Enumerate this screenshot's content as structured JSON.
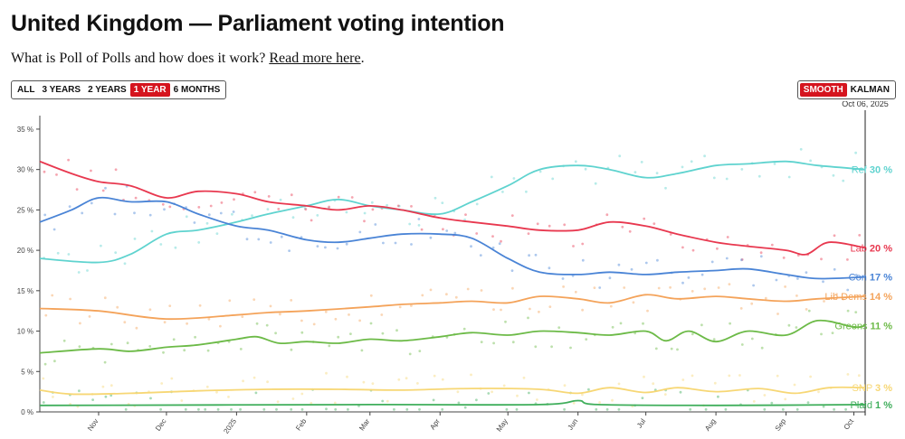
{
  "title": "United Kingdom — Parliament voting intention",
  "subtitle": {
    "prefix": "What is Poll of Polls and how does it work? ",
    "link": "Read more here",
    "suffix": "."
  },
  "range_buttons": [
    "ALL",
    "3 YEARS",
    "2 YEARS",
    "1 YEAR",
    "6 MONTHS"
  ],
  "range_active": "1 YEAR",
  "method_buttons": [
    "SMOOTH",
    "KALMAN"
  ],
  "method_active": "SMOOTH",
  "chart_data": {
    "type": "line",
    "current_date": "Oct 06, 2025",
    "x_range": [
      "2024-10-06",
      "2025-10-06"
    ],
    "ylim": [
      0,
      36
    ],
    "yticks": [
      0,
      5,
      10,
      15,
      20,
      25,
      30,
      35
    ],
    "ytick_suffix": " %",
    "xticks": [
      {
        "label": "Nov",
        "date": "2024-11-01"
      },
      {
        "label": "Dec",
        "date": "2024-12-01"
      },
      {
        "label": "2025",
        "date": "2025-01-01"
      },
      {
        "label": "Feb",
        "date": "2025-02-01"
      },
      {
        "label": "Mar",
        "date": "2025-03-01"
      },
      {
        "label": "Apr",
        "date": "2025-04-01"
      },
      {
        "label": "May",
        "date": "2025-05-01"
      },
      {
        "label": "Jun",
        "date": "2025-06-01"
      },
      {
        "label": "Jul",
        "date": "2025-07-01"
      },
      {
        "label": "Aug",
        "date": "2025-08-01"
      },
      {
        "label": "Sep",
        "date": "2025-09-01"
      },
      {
        "label": "Oct",
        "date": "2025-10-01"
      }
    ],
    "series": [
      {
        "name": "Ref",
        "label": "30 %",
        "color": "#5fd3cf",
        "points": [
          [
            "2024-10-06",
            19
          ],
          [
            "2024-11-01",
            18.5
          ],
          [
            "2024-11-15",
            19.5
          ],
          [
            "2024-12-01",
            22
          ],
          [
            "2024-12-15",
            22.5
          ],
          [
            "2025-01-01",
            23.5
          ],
          [
            "2025-01-15",
            24.5
          ],
          [
            "2025-02-01",
            25.5
          ],
          [
            "2025-02-15",
            26.3
          ],
          [
            "2025-03-01",
            25.5
          ],
          [
            "2025-03-15",
            25
          ],
          [
            "2025-04-01",
            24.5
          ],
          [
            "2025-04-15",
            26
          ],
          [
            "2025-05-01",
            28
          ],
          [
            "2025-05-15",
            30
          ],
          [
            "2025-06-01",
            30.5
          ],
          [
            "2025-06-15",
            30
          ],
          [
            "2025-07-01",
            29
          ],
          [
            "2025-07-15",
            29.5
          ],
          [
            "2025-08-01",
            30.5
          ],
          [
            "2025-08-15",
            30.7
          ],
          [
            "2025-09-01",
            31
          ],
          [
            "2025-09-15",
            30.5
          ],
          [
            "2025-10-06",
            30
          ]
        ]
      },
      {
        "name": "Lab",
        "label": "20 %",
        "color": "#e8384f",
        "points": [
          [
            "2024-10-06",
            31
          ],
          [
            "2024-10-20",
            29.5
          ],
          [
            "2024-11-01",
            28.5
          ],
          [
            "2024-11-15",
            28
          ],
          [
            "2024-12-01",
            26.5
          ],
          [
            "2024-12-15",
            27.3
          ],
          [
            "2025-01-01",
            27
          ],
          [
            "2025-01-15",
            26
          ],
          [
            "2025-02-01",
            25.5
          ],
          [
            "2025-02-15",
            25
          ],
          [
            "2025-03-01",
            25.5
          ],
          [
            "2025-03-15",
            25
          ],
          [
            "2025-04-01",
            24
          ],
          [
            "2025-04-15",
            23.5
          ],
          [
            "2025-05-01",
            23
          ],
          [
            "2025-05-15",
            22.5
          ],
          [
            "2025-06-01",
            22.5
          ],
          [
            "2025-06-15",
            23.5
          ],
          [
            "2025-07-01",
            23
          ],
          [
            "2025-07-15",
            22
          ],
          [
            "2025-08-01",
            21
          ],
          [
            "2025-08-15",
            20.5
          ],
          [
            "2025-09-01",
            20
          ],
          [
            "2025-09-10",
            19.5
          ],
          [
            "2025-09-20",
            21
          ],
          [
            "2025-10-06",
            20.3
          ]
        ]
      },
      {
        "name": "Con",
        "label": "17 %",
        "color": "#4a84d6",
        "points": [
          [
            "2024-10-06",
            23.5
          ],
          [
            "2024-10-20",
            25
          ],
          [
            "2024-11-01",
            26.5
          ],
          [
            "2024-11-15",
            26
          ],
          [
            "2024-12-01",
            26
          ],
          [
            "2024-12-15",
            24.5
          ],
          [
            "2025-01-01",
            23
          ],
          [
            "2025-01-15",
            22.5
          ],
          [
            "2025-02-01",
            21.3
          ],
          [
            "2025-02-15",
            21
          ],
          [
            "2025-03-01",
            21.5
          ],
          [
            "2025-03-15",
            22
          ],
          [
            "2025-04-01",
            22
          ],
          [
            "2025-04-15",
            21.5
          ],
          [
            "2025-05-01",
            19
          ],
          [
            "2025-05-15",
            17.3
          ],
          [
            "2025-06-01",
            17
          ],
          [
            "2025-06-15",
            17.3
          ],
          [
            "2025-07-01",
            17
          ],
          [
            "2025-07-15",
            17.3
          ],
          [
            "2025-08-01",
            17.5
          ],
          [
            "2025-08-15",
            17.7
          ],
          [
            "2025-09-01",
            17
          ],
          [
            "2025-09-15",
            16.5
          ],
          [
            "2025-10-06",
            16.7
          ]
        ]
      },
      {
        "name": "Lib Dems",
        "label": "14 %",
        "color": "#f4a35a",
        "points": [
          [
            "2024-10-06",
            12.8
          ],
          [
            "2024-11-01",
            12.5
          ],
          [
            "2024-12-01",
            11.5
          ],
          [
            "2025-01-01",
            12
          ],
          [
            "2025-01-15",
            12.3
          ],
          [
            "2025-02-01",
            12.5
          ],
          [
            "2025-03-01",
            13
          ],
          [
            "2025-03-15",
            13.3
          ],
          [
            "2025-04-01",
            13.5
          ],
          [
            "2025-04-15",
            13.7
          ],
          [
            "2025-05-01",
            13.5
          ],
          [
            "2025-05-15",
            14.3
          ],
          [
            "2025-06-01",
            14
          ],
          [
            "2025-06-15",
            13.5
          ],
          [
            "2025-07-01",
            14.5
          ],
          [
            "2025-07-15",
            14
          ],
          [
            "2025-08-01",
            14.3
          ],
          [
            "2025-08-15",
            14
          ],
          [
            "2025-09-01",
            13.7
          ],
          [
            "2025-09-15",
            14
          ],
          [
            "2025-10-06",
            14.3
          ]
        ]
      },
      {
        "name": "Greens",
        "label": "11 %",
        "color": "#6cba47",
        "points": [
          [
            "2024-10-06",
            7.3
          ],
          [
            "2024-11-01",
            7.8
          ],
          [
            "2024-11-15",
            7.5
          ],
          [
            "2024-12-01",
            8
          ],
          [
            "2024-12-15",
            8.3
          ],
          [
            "2025-01-01",
            9
          ],
          [
            "2025-01-10",
            9.3
          ],
          [
            "2025-01-20",
            8.5
          ],
          [
            "2025-02-01",
            8.7
          ],
          [
            "2025-02-15",
            8.5
          ],
          [
            "2025-03-01",
            9
          ],
          [
            "2025-03-15",
            8.8
          ],
          [
            "2025-04-01",
            9.3
          ],
          [
            "2025-04-15",
            9.8
          ],
          [
            "2025-05-01",
            9.5
          ],
          [
            "2025-05-15",
            10
          ],
          [
            "2025-06-01",
            9.8
          ],
          [
            "2025-06-15",
            9.5
          ],
          [
            "2025-07-01",
            10
          ],
          [
            "2025-07-10",
            8.8
          ],
          [
            "2025-07-20",
            10
          ],
          [
            "2025-08-01",
            8.7
          ],
          [
            "2025-08-15",
            10
          ],
          [
            "2025-09-01",
            9.5
          ],
          [
            "2025-09-15",
            11.3
          ],
          [
            "2025-10-01",
            10.5
          ],
          [
            "2025-10-06",
            10.7
          ]
        ]
      },
      {
        "name": "SNP",
        "label": "3 %",
        "color": "#f7d775",
        "points": [
          [
            "2024-10-06",
            2.7
          ],
          [
            "2024-10-20",
            2.2
          ],
          [
            "2024-11-15",
            2.3
          ],
          [
            "2024-12-15",
            2.6
          ],
          [
            "2025-01-15",
            2.8
          ],
          [
            "2025-02-15",
            2.8
          ],
          [
            "2025-03-15",
            2.7
          ],
          [
            "2025-04-15",
            2.9
          ],
          [
            "2025-05-15",
            2.8
          ],
          [
            "2025-06-01",
            2.3
          ],
          [
            "2025-06-15",
            3
          ],
          [
            "2025-07-01",
            2.4
          ],
          [
            "2025-07-15",
            3
          ],
          [
            "2025-08-01",
            2.5
          ],
          [
            "2025-08-20",
            2.9
          ],
          [
            "2025-09-05",
            2.3
          ],
          [
            "2025-09-20",
            3
          ],
          [
            "2025-10-06",
            3
          ]
        ]
      },
      {
        "name": "Plaid",
        "label": "1 %",
        "color": "#3fae5b",
        "points": [
          [
            "2024-10-06",
            0.8
          ],
          [
            "2025-03-01",
            0.9
          ],
          [
            "2025-05-15",
            0.9
          ],
          [
            "2025-06-01",
            1.4
          ],
          [
            "2025-06-10",
            0.9
          ],
          [
            "2025-08-01",
            0.8
          ],
          [
            "2025-10-06",
            0.9
          ]
        ]
      }
    ]
  }
}
